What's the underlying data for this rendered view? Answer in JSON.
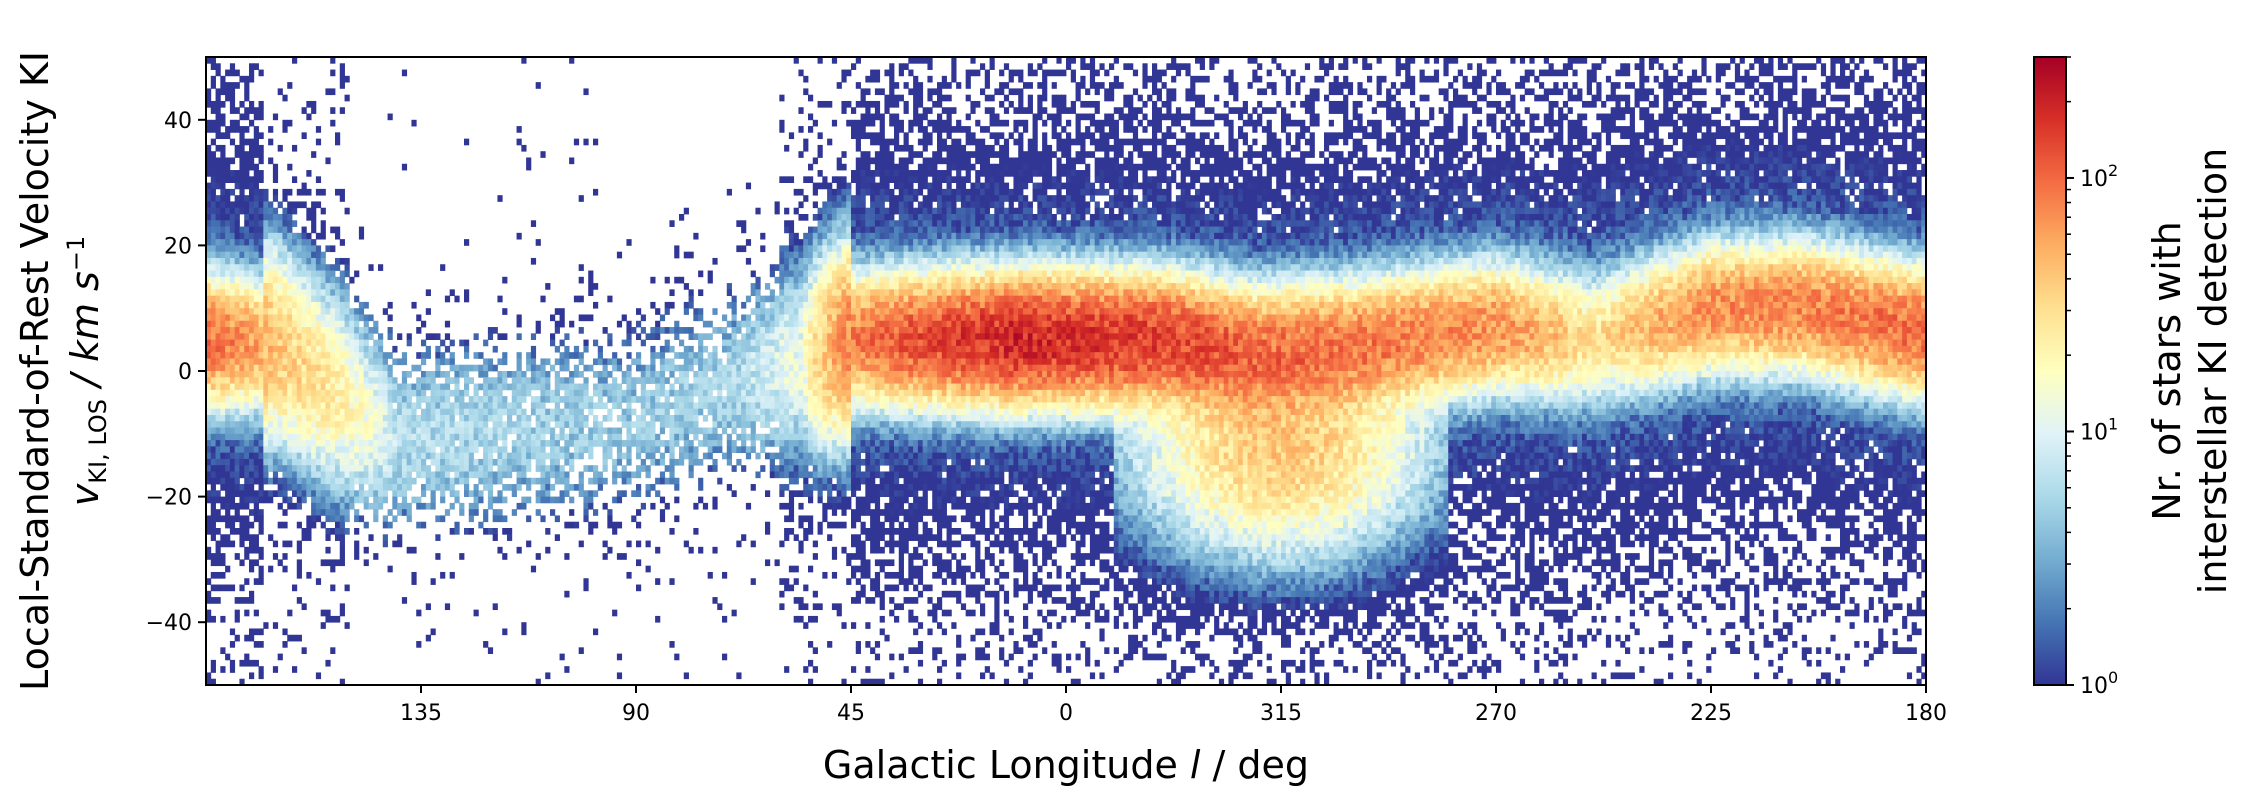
{
  "chart_data": {
    "type": "heatmap",
    "title": "",
    "xlabel": {
      "main": "Galactic Longitude ",
      "var": "l",
      "unit": " / deg"
    },
    "ylabel": {
      "line1": "Local-Standard-of-Rest Velocity KI",
      "line2_var": "v",
      "line2_sub": "KI, LOS",
      "line2_unit": " / km s",
      "line2_sup": "−1"
    },
    "colorbar_label": [
      "Nr. of stars with",
      "interstellar KI detection"
    ],
    "x_ticks": [
      {
        "pos_deg": 135,
        "label": "135"
      },
      {
        "pos_deg": 90,
        "label": "90"
      },
      {
        "pos_deg": 45,
        "label": "45"
      },
      {
        "pos_deg": 0,
        "label": "0"
      },
      {
        "pos_deg": -45,
        "label": "315"
      },
      {
        "pos_deg": -90,
        "label": "270"
      },
      {
        "pos_deg": -135,
        "label": "225"
      },
      {
        "pos_deg": -180,
        "label": "180"
      }
    ],
    "x_range_deg": [
      180,
      -180
    ],
    "y_ticks": [
      40,
      20,
      0,
      -20,
      -40
    ],
    "y_tick_labels": [
      "40",
      "20",
      "0",
      "−20",
      "−40"
    ],
    "y_range": [
      -50,
      50
    ],
    "colorbar": {
      "scale": "log",
      "range": [
        1,
        300
      ],
      "ticks": [
        {
          "value": 1,
          "base": "10",
          "exp": "0"
        },
        {
          "value": 10,
          "base": "10",
          "exp": "1"
        },
        {
          "value": 100,
          "base": "10",
          "exp": "2"
        }
      ],
      "colormap": [
        "#313695",
        "#4575b4",
        "#74add1",
        "#abd9e9",
        "#e0f3f8",
        "#ffffbf",
        "#fee090",
        "#fdae61",
        "#f46d43",
        "#d73027",
        "#a50026"
      ]
    },
    "ridge": [
      {
        "l": 180,
        "v": 5,
        "peak": 100
      },
      {
        "l": 165,
        "v": 4,
        "peak": 40
      },
      {
        "l": 140,
        "v": -11,
        "peak": 6
      },
      {
        "l": 92,
        "v": -8,
        "peak": 4
      },
      {
        "l": 70,
        "v": -2,
        "peak": 5
      },
      {
        "l": 55,
        "v": 2,
        "peak": 12
      },
      {
        "l": 45,
        "v": 5,
        "peak": 80
      },
      {
        "l": 10,
        "v": 5,
        "peak": 200
      },
      {
        "l": 0,
        "v": 5,
        "peak": 180
      },
      {
        "l": -20,
        "v": 5,
        "peak": 150
      },
      {
        "l": -40,
        "v": 3,
        "peak": 100
      },
      {
        "l": -60,
        "v": 4,
        "peak": 90
      },
      {
        "l": -90,
        "v": 7,
        "peak": 70
      },
      {
        "l": -110,
        "v": 5,
        "peak": 25
      },
      {
        "l": -135,
        "v": 10,
        "peak": 70
      },
      {
        "l": -155,
        "v": 10,
        "peak": 80
      },
      {
        "l": -180,
        "v": 6,
        "peak": 100
      }
    ]
  }
}
